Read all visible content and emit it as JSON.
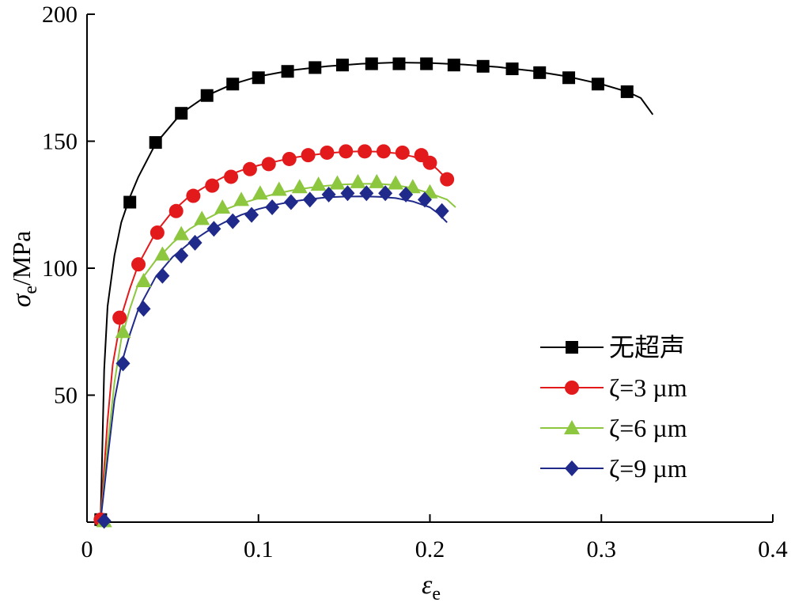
{
  "chart_data": {
    "type": "line",
    "xlabel": {
      "symbol": "ε",
      "subscript": "e"
    },
    "ylabel": {
      "symbol": "σ",
      "subscript": "e",
      "unit": "/MPa"
    },
    "xlim": [
      0,
      0.4
    ],
    "ylim": [
      0,
      200
    ],
    "x_ticks": [
      "0",
      "0.1",
      "0.2",
      "0.3",
      "0.4"
    ],
    "y_ticks": [
      "50",
      "100",
      "150",
      "200"
    ],
    "grid": false,
    "legend_position": "bottom-right",
    "series": [
      {
        "name": "无超声",
        "color": "#000000",
        "marker": "square",
        "curve": [
          [
            0.008,
            2
          ],
          [
            0.01,
            60
          ],
          [
            0.012,
            85
          ],
          [
            0.016,
            105
          ],
          [
            0.02,
            118
          ],
          [
            0.025,
            128
          ],
          [
            0.03,
            136
          ],
          [
            0.04,
            149
          ],
          [
            0.055,
            161
          ],
          [
            0.07,
            168
          ],
          [
            0.085,
            172.5
          ],
          [
            0.1,
            175.5
          ],
          [
            0.12,
            178
          ],
          [
            0.14,
            179.5
          ],
          [
            0.16,
            180.5
          ],
          [
            0.18,
            181
          ],
          [
            0.2,
            180.8
          ],
          [
            0.22,
            180.2
          ],
          [
            0.24,
            179.2
          ],
          [
            0.26,
            177.7
          ],
          [
            0.28,
            175.5
          ],
          [
            0.3,
            172.5
          ],
          [
            0.315,
            169.5
          ],
          [
            0.323,
            167
          ],
          [
            0.33,
            160.5
          ]
        ],
        "markers": [
          [
            0.008,
            1
          ],
          [
            0.025,
            126
          ],
          [
            0.04,
            149.5
          ],
          [
            0.055,
            161
          ],
          [
            0.07,
            168
          ],
          [
            0.085,
            172.5
          ],
          [
            0.1,
            175
          ],
          [
            0.117,
            177.5
          ],
          [
            0.133,
            179
          ],
          [
            0.149,
            180
          ],
          [
            0.166,
            180.5
          ],
          [
            0.182,
            180.5
          ],
          [
            0.198,
            180.5
          ],
          [
            0.214,
            180
          ],
          [
            0.231,
            179.5
          ],
          [
            0.248,
            178.5
          ],
          [
            0.264,
            177
          ],
          [
            0.281,
            175
          ],
          [
            0.298,
            172.5
          ],
          [
            0.315,
            169.5
          ]
        ]
      },
      {
        "name": "ζ=3 µm",
        "color": "#e31a1c",
        "marker": "circle",
        "curve": [
          [
            0.008,
            2
          ],
          [
            0.012,
            40
          ],
          [
            0.015,
            62
          ],
          [
            0.02,
            81
          ],
          [
            0.025,
            92
          ],
          [
            0.03,
            101.5
          ],
          [
            0.04,
            114
          ],
          [
            0.05,
            122.5
          ],
          [
            0.06,
            128.5
          ],
          [
            0.07,
            132.5
          ],
          [
            0.08,
            136
          ],
          [
            0.09,
            138.5
          ],
          [
            0.1,
            140.5
          ],
          [
            0.11,
            142
          ],
          [
            0.12,
            143.5
          ],
          [
            0.13,
            144.5
          ],
          [
            0.14,
            145.3
          ],
          [
            0.15,
            145.8
          ],
          [
            0.16,
            146
          ],
          [
            0.17,
            145.9
          ],
          [
            0.18,
            145.3
          ],
          [
            0.19,
            144
          ],
          [
            0.2,
            141.5
          ],
          [
            0.205,
            138.5
          ],
          [
            0.21,
            135
          ]
        ],
        "markers": [
          [
            0.008,
            1
          ],
          [
            0.019,
            80.5
          ],
          [
            0.03,
            101.5
          ],
          [
            0.041,
            114
          ],
          [
            0.052,
            122.5
          ],
          [
            0.062,
            128.5
          ],
          [
            0.073,
            132.5
          ],
          [
            0.084,
            136
          ],
          [
            0.095,
            139
          ],
          [
            0.106,
            141
          ],
          [
            0.118,
            143
          ],
          [
            0.129,
            144.5
          ],
          [
            0.14,
            145.5
          ],
          [
            0.151,
            146
          ],
          [
            0.162,
            146
          ],
          [
            0.173,
            146
          ],
          [
            0.184,
            145.5
          ],
          [
            0.195,
            144.5
          ],
          [
            0.2,
            141.5
          ],
          [
            0.21,
            135
          ]
        ]
      },
      {
        "name": "ζ=6 µm",
        "color": "#8dc63f",
        "marker": "triangle",
        "curve": [
          [
            0.008,
            1
          ],
          [
            0.012,
            30
          ],
          [
            0.016,
            55
          ],
          [
            0.02,
            72
          ],
          [
            0.025,
            84
          ],
          [
            0.03,
            94
          ],
          [
            0.04,
            103
          ],
          [
            0.05,
            110
          ],
          [
            0.06,
            115.5
          ],
          [
            0.07,
            119.5
          ],
          [
            0.08,
            123
          ],
          [
            0.09,
            125.5
          ],
          [
            0.1,
            127.5
          ],
          [
            0.11,
            129.3
          ],
          [
            0.12,
            130.7
          ],
          [
            0.13,
            131.7
          ],
          [
            0.14,
            132.5
          ],
          [
            0.15,
            133
          ],
          [
            0.16,
            133.2
          ],
          [
            0.17,
            133.2
          ],
          [
            0.18,
            132.7
          ],
          [
            0.19,
            131.5
          ],
          [
            0.2,
            129.5
          ],
          [
            0.21,
            127
          ],
          [
            0.215,
            124
          ]
        ],
        "markers": [
          [
            0.01,
            0.5
          ],
          [
            0.021,
            75
          ],
          [
            0.033,
            95
          ],
          [
            0.044,
            105.5
          ],
          [
            0.055,
            113.5
          ],
          [
            0.067,
            119.5
          ],
          [
            0.079,
            124
          ],
          [
            0.09,
            127
          ],
          [
            0.101,
            129.5
          ],
          [
            0.112,
            131
          ],
          [
            0.124,
            132
          ],
          [
            0.135,
            133
          ],
          [
            0.146,
            133.5
          ],
          [
            0.158,
            134
          ],
          [
            0.169,
            134
          ],
          [
            0.18,
            133.5
          ],
          [
            0.19,
            132
          ],
          [
            0.2,
            130
          ]
        ]
      },
      {
        "name": "ζ=9 µm",
        "color": "#1f2a8a",
        "marker": "diamond",
        "curve": [
          [
            0.008,
            1
          ],
          [
            0.012,
            25
          ],
          [
            0.016,
            48
          ],
          [
            0.02,
            62
          ],
          [
            0.025,
            74
          ],
          [
            0.03,
            84
          ],
          [
            0.04,
            96.5
          ],
          [
            0.05,
            104.5
          ],
          [
            0.06,
            110
          ],
          [
            0.07,
            114.5
          ],
          [
            0.08,
            118
          ],
          [
            0.09,
            121
          ],
          [
            0.1,
            123.3
          ],
          [
            0.11,
            125
          ],
          [
            0.12,
            126.3
          ],
          [
            0.13,
            127.2
          ],
          [
            0.14,
            127.9
          ],
          [
            0.15,
            128.2
          ],
          [
            0.16,
            128.3
          ],
          [
            0.17,
            128.1
          ],
          [
            0.18,
            127.6
          ],
          [
            0.19,
            126.3
          ],
          [
            0.2,
            124
          ],
          [
            0.205,
            121.5
          ],
          [
            0.21,
            118
          ]
        ],
        "markers": [
          [
            0.01,
            0.5
          ],
          [
            0.021,
            62.5
          ],
          [
            0.033,
            84
          ],
          [
            0.044,
            97
          ],
          [
            0.055,
            105
          ],
          [
            0.063,
            110
          ],
          [
            0.074,
            115.5
          ],
          [
            0.085,
            118.5
          ],
          [
            0.096,
            121
          ],
          [
            0.108,
            124
          ],
          [
            0.119,
            126
          ],
          [
            0.13,
            127
          ],
          [
            0.141,
            129
          ],
          [
            0.152,
            129.5
          ],
          [
            0.163,
            129.5
          ],
          [
            0.174,
            129.5
          ],
          [
            0.186,
            129
          ],
          [
            0.197,
            127
          ],
          [
            0.207,
            122.5
          ]
        ]
      }
    ]
  }
}
